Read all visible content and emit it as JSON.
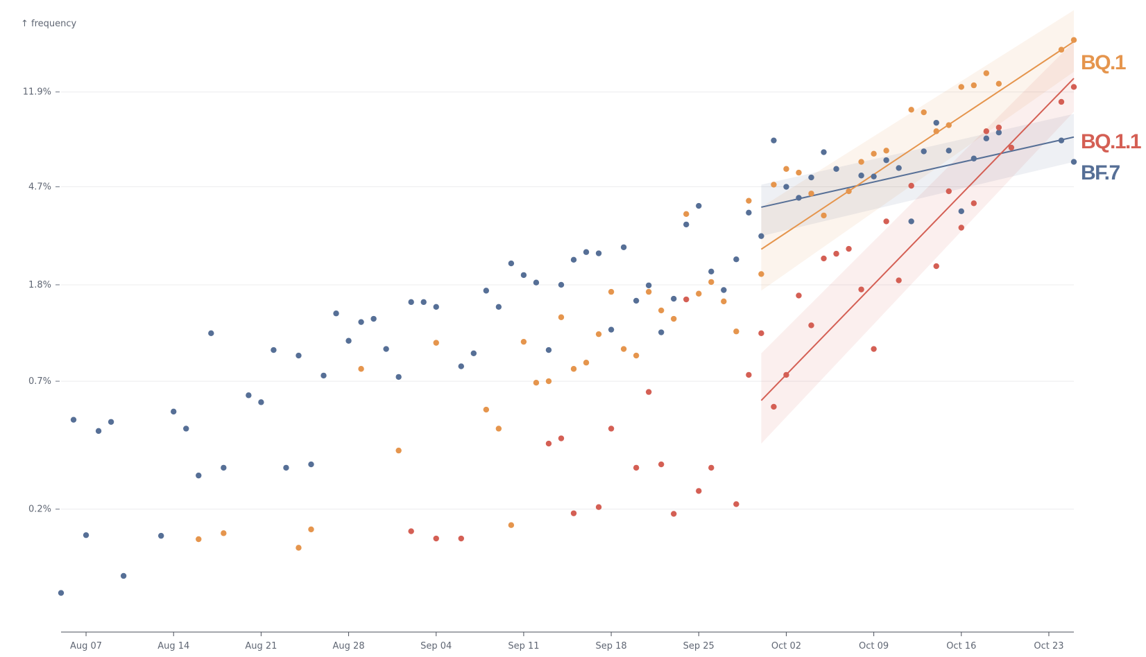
{
  "chart_data": {
    "type": "scatter",
    "ylabel": "↑ frequency",
    "yscale": "log",
    "y_ticks": [
      {
        "value": 0.2,
        "label": "0.2%"
      },
      {
        "value": 0.7,
        "label": "0.7%"
      },
      {
        "value": 1.8,
        "label": "1.8%"
      },
      {
        "value": 4.7,
        "label": "4.7%"
      },
      {
        "value": 11.9,
        "label": "11.9%"
      }
    ],
    "ylim": [
      0.06,
      27
    ],
    "xlim": [
      "2022-08-05",
      "2022-10-25"
    ],
    "x_ticks": [
      {
        "date": "2022-08-07",
        "label": "Aug 07"
      },
      {
        "date": "2022-08-14",
        "label": "Aug 14"
      },
      {
        "date": "2022-08-21",
        "label": "Aug 21"
      },
      {
        "date": "2022-08-28",
        "label": "Aug 28"
      },
      {
        "date": "2022-09-04",
        "label": "Sep 04"
      },
      {
        "date": "2022-09-11",
        "label": "Sep 11"
      },
      {
        "date": "2022-09-18",
        "label": "Sep 18"
      },
      {
        "date": "2022-09-25",
        "label": "Sep 25"
      },
      {
        "date": "2022-10-02",
        "label": "Oct 02"
      },
      {
        "date": "2022-10-09",
        "label": "Oct 09"
      },
      {
        "date": "2022-10-16",
        "label": "Oct 16"
      },
      {
        "date": "2022-10-23",
        "label": "Oct 23"
      }
    ],
    "grid": "horizontal",
    "series": [
      {
        "name": "BF.7",
        "color": "#566f96",
        "points": [
          [
            "2022-08-05",
            0.088
          ],
          [
            "2022-08-06",
            0.48
          ],
          [
            "2022-08-07",
            0.155
          ],
          [
            "2022-08-08",
            0.43
          ],
          [
            "2022-08-09",
            0.47
          ],
          [
            "2022-08-10",
            0.104
          ],
          [
            "2022-08-13",
            0.154
          ],
          [
            "2022-08-14",
            0.52
          ],
          [
            "2022-08-15",
            0.44
          ],
          [
            "2022-08-16",
            0.278
          ],
          [
            "2022-08-17",
            1.12
          ],
          [
            "2022-08-18",
            0.3
          ],
          [
            "2022-08-20",
            0.61
          ],
          [
            "2022-08-21",
            0.57
          ],
          [
            "2022-08-22",
            0.95
          ],
          [
            "2022-08-23",
            0.3
          ],
          [
            "2022-08-24",
            0.9
          ],
          [
            "2022-08-25",
            0.31
          ],
          [
            "2022-08-26",
            0.74
          ],
          [
            "2022-08-27",
            1.36
          ],
          [
            "2022-08-28",
            1.04
          ],
          [
            "2022-08-29",
            1.25
          ],
          [
            "2022-08-30",
            1.29
          ],
          [
            "2022-08-31",
            0.96
          ],
          [
            "2022-09-01",
            0.73
          ],
          [
            "2022-09-02",
            1.52
          ],
          [
            "2022-09-03",
            1.52
          ],
          [
            "2022-09-04",
            1.45
          ],
          [
            "2022-09-06",
            0.81
          ],
          [
            "2022-09-07",
            0.92
          ],
          [
            "2022-09-08",
            1.7
          ],
          [
            "2022-09-09",
            1.45
          ],
          [
            "2022-09-10",
            2.22
          ],
          [
            "2022-09-11",
            1.98
          ],
          [
            "2022-09-12",
            1.84
          ],
          [
            "2022-09-13",
            0.95
          ],
          [
            "2022-09-14",
            1.8
          ],
          [
            "2022-09-15",
            2.3
          ],
          [
            "2022-09-16",
            2.48
          ],
          [
            "2022-09-17",
            2.45
          ],
          [
            "2022-09-18",
            1.16
          ],
          [
            "2022-09-19",
            2.6
          ],
          [
            "2022-09-20",
            1.54
          ],
          [
            "2022-09-21",
            1.79
          ],
          [
            "2022-09-22",
            1.13
          ],
          [
            "2022-09-23",
            1.57
          ],
          [
            "2022-09-24",
            3.25
          ],
          [
            "2022-09-25",
            3.9
          ],
          [
            "2022-09-26",
            2.05
          ],
          [
            "2022-09-27",
            1.71
          ],
          [
            "2022-09-28",
            2.31
          ],
          [
            "2022-09-29",
            3.65
          ],
          [
            "2022-09-30",
            2.9
          ],
          [
            "2022-10-01",
            7.4
          ],
          [
            "2022-10-02",
            4.7
          ],
          [
            "2022-10-03",
            4.22
          ],
          [
            "2022-10-04",
            5.15
          ],
          [
            "2022-10-05",
            6.6
          ],
          [
            "2022-10-06",
            5.6
          ],
          [
            "2022-10-08",
            5.25
          ],
          [
            "2022-10-09",
            5.2
          ],
          [
            "2022-10-10",
            6.1
          ],
          [
            "2022-10-11",
            5.65
          ],
          [
            "2022-10-12",
            3.35
          ],
          [
            "2022-10-13",
            6.65
          ],
          [
            "2022-10-14",
            8.8
          ],
          [
            "2022-10-15",
            6.7
          ],
          [
            "2022-10-16",
            3.7
          ],
          [
            "2022-10-17",
            6.2
          ],
          [
            "2022-10-18",
            7.55
          ],
          [
            "2022-10-19",
            8.0
          ],
          [
            "2022-10-24",
            7.4
          ],
          [
            "2022-10-25",
            6.0
          ]
        ],
        "fit": {
          "x": [
            "2022-09-30",
            "2022-10-25"
          ],
          "y": [
            3.85,
            7.65
          ],
          "band_low": [
            2.9,
            6.0
          ],
          "band_high": [
            4.8,
            9.6
          ]
        }
      },
      {
        "name": "BQ.1",
        "color": "#e5954d",
        "points": [
          [
            "2022-08-16",
            0.149
          ],
          [
            "2022-08-18",
            0.158
          ],
          [
            "2022-08-24",
            0.137
          ],
          [
            "2022-08-25",
            0.164
          ],
          [
            "2022-08-29",
            0.79
          ],
          [
            "2022-09-01",
            0.355
          ],
          [
            "2022-09-04",
            1.02
          ],
          [
            "2022-09-08",
            0.53
          ],
          [
            "2022-09-09",
            0.44
          ],
          [
            "2022-09-10",
            0.171
          ],
          [
            "2022-09-11",
            1.03
          ],
          [
            "2022-09-12",
            0.69
          ],
          [
            "2022-09-13",
            0.7
          ],
          [
            "2022-09-14",
            1.31
          ],
          [
            "2022-09-15",
            0.79
          ],
          [
            "2022-09-16",
            0.84
          ],
          [
            "2022-09-17",
            1.11
          ],
          [
            "2022-09-18",
            1.68
          ],
          [
            "2022-09-19",
            0.96
          ],
          [
            "2022-09-20",
            0.9
          ],
          [
            "2022-09-21",
            1.68
          ],
          [
            "2022-09-22",
            1.4
          ],
          [
            "2022-09-23",
            1.29
          ],
          [
            "2022-09-24",
            3.6
          ],
          [
            "2022-09-25",
            1.65
          ],
          [
            "2022-09-26",
            1.85
          ],
          [
            "2022-09-27",
            1.53
          ],
          [
            "2022-09-28",
            1.14
          ],
          [
            "2022-09-29",
            4.1
          ],
          [
            "2022-09-30",
            2.0
          ],
          [
            "2022-10-01",
            4.8
          ],
          [
            "2022-10-02",
            5.6
          ],
          [
            "2022-10-03",
            5.4
          ],
          [
            "2022-10-04",
            4.4
          ],
          [
            "2022-10-05",
            3.55
          ],
          [
            "2022-10-07",
            4.5
          ],
          [
            "2022-10-08",
            6.0
          ],
          [
            "2022-10-09",
            6.5
          ],
          [
            "2022-10-10",
            6.7
          ],
          [
            "2022-10-12",
            10.0
          ],
          [
            "2022-10-13",
            9.75
          ],
          [
            "2022-10-14",
            8.1
          ],
          [
            "2022-10-15",
            8.6
          ],
          [
            "2022-10-16",
            12.5
          ],
          [
            "2022-10-17",
            12.7
          ],
          [
            "2022-10-18",
            14.3
          ],
          [
            "2022-10-19",
            12.9
          ],
          [
            "2022-10-24",
            18.0
          ],
          [
            "2022-10-25",
            19.8
          ]
        ],
        "fit": {
          "x": [
            "2022-09-30",
            "2022-10-25"
          ],
          "y": [
            2.55,
            19.5
          ],
          "band_low": [
            1.7,
            14.5
          ],
          "band_high": [
            3.85,
            26.5
          ]
        }
      },
      {
        "name": "BQ.1.1",
        "color": "#d45f54",
        "points": [
          [
            "2022-09-02",
            0.161
          ],
          [
            "2022-09-04",
            0.15
          ],
          [
            "2022-09-06",
            0.15
          ],
          [
            "2022-09-13",
            0.38
          ],
          [
            "2022-09-14",
            0.4
          ],
          [
            "2022-09-15",
            0.192
          ],
          [
            "2022-09-17",
            0.204
          ],
          [
            "2022-09-18",
            0.44
          ],
          [
            "2022-09-20",
            0.3
          ],
          [
            "2022-09-21",
            0.63
          ],
          [
            "2022-09-22",
            0.31
          ],
          [
            "2022-09-23",
            0.191
          ],
          [
            "2022-09-24",
            1.56
          ],
          [
            "2022-09-25",
            0.239
          ],
          [
            "2022-09-26",
            0.3
          ],
          [
            "2022-09-28",
            0.21
          ],
          [
            "2022-09-29",
            0.745
          ],
          [
            "2022-09-30",
            1.12
          ],
          [
            "2022-10-01",
            0.545
          ],
          [
            "2022-10-02",
            0.745
          ],
          [
            "2022-10-03",
            1.62
          ],
          [
            "2022-10-04",
            1.21
          ],
          [
            "2022-10-05",
            2.33
          ],
          [
            "2022-10-06",
            2.44
          ],
          [
            "2022-10-07",
            2.56
          ],
          [
            "2022-10-08",
            1.72
          ],
          [
            "2022-10-09",
            0.96
          ],
          [
            "2022-10-10",
            3.35
          ],
          [
            "2022-10-11",
            1.88
          ],
          [
            "2022-10-12",
            4.75
          ],
          [
            "2022-10-14",
            2.16
          ],
          [
            "2022-10-15",
            4.5
          ],
          [
            "2022-10-16",
            3.15
          ],
          [
            "2022-10-17",
            4.0
          ],
          [
            "2022-10-18",
            8.1
          ],
          [
            "2022-10-19",
            8.4
          ],
          [
            "2022-10-20",
            6.9
          ],
          [
            "2022-10-24",
            10.8
          ],
          [
            "2022-10-25",
            12.5
          ]
        ],
        "fit": {
          "x": [
            "2022-09-30",
            "2022-10-25"
          ],
          "y": [
            0.58,
            13.6
          ],
          "band_low": [
            0.38,
            9.8
          ],
          "band_high": [
            0.92,
            19.5
          ]
        }
      }
    ]
  }
}
